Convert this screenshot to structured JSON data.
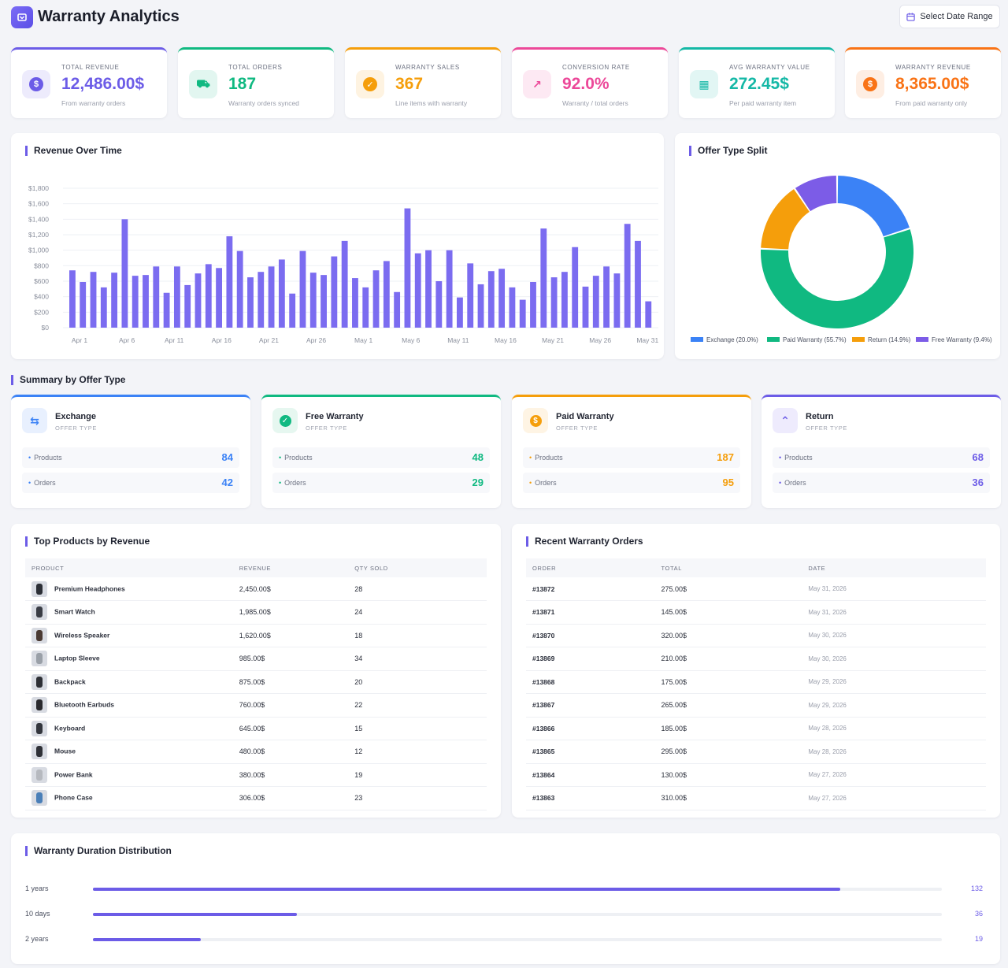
{
  "header": {
    "title": "Warranty Analytics",
    "date_button": "Select Date Range"
  },
  "kpis": [
    {
      "label": "TOTAL REVENUE",
      "value": "12,486.00$",
      "sub": "From warranty orders",
      "color": "#6c5ce7",
      "icon": "dollar-icon"
    },
    {
      "label": "TOTAL ORDERS",
      "value": "187",
      "sub": "Warranty orders synced",
      "color": "#10b981",
      "icon": "cart-icon"
    },
    {
      "label": "WARRANTY SALES",
      "value": "367",
      "sub": "Line items with warranty",
      "color": "#f59e0b",
      "icon": "shield-icon"
    },
    {
      "label": "CONVERSION RATE",
      "value": "92.0%",
      "sub": "Warranty / total orders",
      "color": "#ec4899",
      "icon": "trend-up-icon"
    },
    {
      "label": "AVG WARRANTY VALUE",
      "value": "272.45$",
      "sub": "Per paid warranty item",
      "color": "#14b8a6",
      "icon": "calendar-icon"
    },
    {
      "label": "WARRANTY REVENUE",
      "value": "8,365.00$",
      "sub": "From paid warranty only",
      "color": "#f97316",
      "icon": "coin-icon"
    }
  ],
  "revenue_panel": {
    "title": "Revenue Over Time"
  },
  "split_panel": {
    "title": "Offer Type Split"
  },
  "chart_data": [
    {
      "type": "bar",
      "title": "Revenue Over Time",
      "ylim": [
        0,
        1800
      ],
      "yticks": [
        "$0",
        "$200",
        "$400",
        "$600",
        "$800",
        "$1,000",
        "$1,200",
        "$1,400",
        "$1,600",
        "$1,800"
      ],
      "xticks": [
        "Apr 1",
        "Apr 6",
        "Apr 11",
        "Apr 16",
        "Apr 21",
        "Apr 26",
        "May 1",
        "May 6",
        "May 11",
        "May 16",
        "May 21",
        "May 26",
        "May 31"
      ],
      "grid": true,
      "color": "#7b6cf0",
      "values": [
        740,
        590,
        720,
        520,
        710,
        1400,
        670,
        680,
        790,
        450,
        790,
        550,
        700,
        820,
        770,
        1180,
        990,
        650,
        720,
        790,
        880,
        440,
        990,
        710,
        680,
        920,
        1120,
        640,
        520,
        740,
        860,
        460,
        1540,
        960,
        1000,
        600,
        1000,
        390,
        830,
        560,
        730,
        760,
        520,
        360,
        590,
        1280,
        650,
        720,
        1040,
        530,
        670,
        790,
        700,
        1340,
        1120,
        340
      ]
    },
    {
      "type": "pie",
      "title": "Offer Type Split",
      "donut": true,
      "legend": "bottom",
      "slices": [
        {
          "label": "Exchange (20.0%)",
          "value": 20.0,
          "color": "#3b82f6"
        },
        {
          "label": "Paid Warranty (55.7%)",
          "value": 55.7,
          "color": "#10b981"
        },
        {
          "label": "Return (14.9%)",
          "value": 14.9,
          "color": "#f59e0b"
        },
        {
          "label": "Free Warranty (9.4%)",
          "value": 9.4,
          "color": "#7c5ce7"
        }
      ]
    },
    {
      "type": "bar",
      "title": "Warranty Duration Distribution",
      "orientation": "horizontal",
      "categories": [
        "1 years",
        "10 days",
        "2 years"
      ],
      "values": [
        132,
        36,
        19
      ],
      "max": 150,
      "color": "#6c5ce7"
    }
  ],
  "summary": {
    "title": "Summary by Offer Type",
    "cards": [
      {
        "name": "Exchange",
        "type_label": "OFFER TYPE",
        "color": "#3b82f6",
        "tint": "#e8f0fe",
        "icon": "exchange-icon",
        "products_label": "Products",
        "products": "84",
        "orders_label": "Orders",
        "orders": "42"
      },
      {
        "name": "Free Warranty",
        "type_label": "OFFER TYPE",
        "color": "#10b981",
        "tint": "#e6f7f0",
        "icon": "shield-check-icon",
        "products_label": "Products",
        "products": "48",
        "orders_label": "Orders",
        "orders": "29"
      },
      {
        "name": "Paid Warranty",
        "type_label": "OFFER TYPE",
        "color": "#f59e0b",
        "tint": "#fef4e4",
        "icon": "dollar-icon",
        "products_label": "Products",
        "products": "187",
        "orders_label": "Orders",
        "orders": "95"
      },
      {
        "name": "Return",
        "type_label": "OFFER TYPE",
        "color": "#6c5ce7",
        "tint": "#eeebfd",
        "icon": "chevrons-up-icon",
        "products_label": "Products",
        "products": "68",
        "orders_label": "Orders",
        "orders": "36"
      }
    ]
  },
  "top_products": {
    "title": "Top Products by Revenue",
    "headers": [
      "PRODUCT",
      "REVENUE",
      "QTY SOLD"
    ],
    "rows": [
      {
        "product": "Premium Headphones",
        "revenue": "2,450.00$",
        "qty": "28",
        "thumb": "headphones"
      },
      {
        "product": "Smart Watch",
        "revenue": "1,985.00$",
        "qty": "24",
        "thumb": "watch"
      },
      {
        "product": "Wireless Speaker",
        "revenue": "1,620.00$",
        "qty": "18",
        "thumb": "speaker"
      },
      {
        "product": "Laptop Sleeve",
        "revenue": "985.00$",
        "qty": "34",
        "thumb": "sleeve"
      },
      {
        "product": "Backpack",
        "revenue": "875.00$",
        "qty": "20",
        "thumb": "backpack"
      },
      {
        "product": "Bluetooth Earbuds",
        "revenue": "760.00$",
        "qty": "22",
        "thumb": "earbuds"
      },
      {
        "product": "Keyboard",
        "revenue": "645.00$",
        "qty": "15",
        "thumb": "keyboard"
      },
      {
        "product": "Mouse",
        "revenue": "480.00$",
        "qty": "12",
        "thumb": "mouse"
      },
      {
        "product": "Power Bank",
        "revenue": "380.00$",
        "qty": "19",
        "thumb": "powerbank"
      },
      {
        "product": "Phone Case",
        "revenue": "306.00$",
        "qty": "23",
        "thumb": "phonecase"
      }
    ]
  },
  "recent_orders": {
    "title": "Recent Warranty Orders",
    "headers": [
      "ORDER",
      "TOTAL",
      "DATE"
    ],
    "rows": [
      {
        "order": "#13872",
        "total": "275.00$",
        "date": "May 31, 2026"
      },
      {
        "order": "#13871",
        "total": "145.00$",
        "date": "May 31, 2026"
      },
      {
        "order": "#13870",
        "total": "320.00$",
        "date": "May 30, 2026"
      },
      {
        "order": "#13869",
        "total": "210.00$",
        "date": "May 30, 2026"
      },
      {
        "order": "#13868",
        "total": "175.00$",
        "date": "May 29, 2026"
      },
      {
        "order": "#13867",
        "total": "265.00$",
        "date": "May 29, 2026"
      },
      {
        "order": "#13866",
        "total": "185.00$",
        "date": "May 28, 2026"
      },
      {
        "order": "#13865",
        "total": "295.00$",
        "date": "May 28, 2026"
      },
      {
        "order": "#13864",
        "total": "130.00$",
        "date": "May 27, 2026"
      },
      {
        "order": "#13863",
        "total": "310.00$",
        "date": "May 27, 2026"
      }
    ]
  },
  "distribution": {
    "title": "Warranty Duration Distribution"
  }
}
